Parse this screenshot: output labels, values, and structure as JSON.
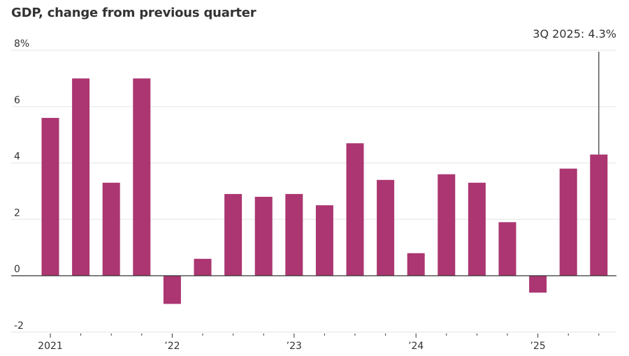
{
  "chart_data": {
    "type": "bar",
    "title": "GDP, change from previous quarter",
    "xlabel": "",
    "ylabel": "",
    "ylim": [
      -2,
      8
    ],
    "yticks": [
      -2,
      0,
      2,
      4,
      6,
      8
    ],
    "ytick_labels": [
      "-2",
      "0",
      "2",
      "4",
      "6",
      "8%"
    ],
    "grid": true,
    "categories": [
      "1Q 2021",
      "2Q 2021",
      "3Q 2021",
      "4Q 2021",
      "1Q 2022",
      "2Q 2022",
      "3Q 2022",
      "4Q 2022",
      "1Q 2023",
      "2Q 2023",
      "3Q 2023",
      "4Q 2023",
      "1Q 2024",
      "2Q 2024",
      "3Q 2024",
      "4Q 2024",
      "1Q 2025",
      "2Q 2025",
      "3Q 2025"
    ],
    "values": [
      5.6,
      7.0,
      3.3,
      7.0,
      -1.0,
      0.6,
      2.9,
      2.8,
      2.9,
      2.5,
      4.7,
      3.4,
      0.8,
      3.6,
      3.3,
      1.9,
      -0.6,
      3.8,
      4.3
    ],
    "x_major_ticks": [
      {
        "index": 0,
        "label": "2021"
      },
      {
        "index": 4,
        "label": "’22"
      },
      {
        "index": 8,
        "label": "’23"
      },
      {
        "index": 12,
        "label": "’24"
      },
      {
        "index": 16,
        "label": "’25"
      }
    ],
    "annotation": {
      "index": 18,
      "text": "3Q 2025: 4.3%"
    },
    "colors": {
      "bar": "#ab3671",
      "grid": "#e6e6e6",
      "axis": "#333333",
      "text": "#333333"
    },
    "legend": "none"
  }
}
